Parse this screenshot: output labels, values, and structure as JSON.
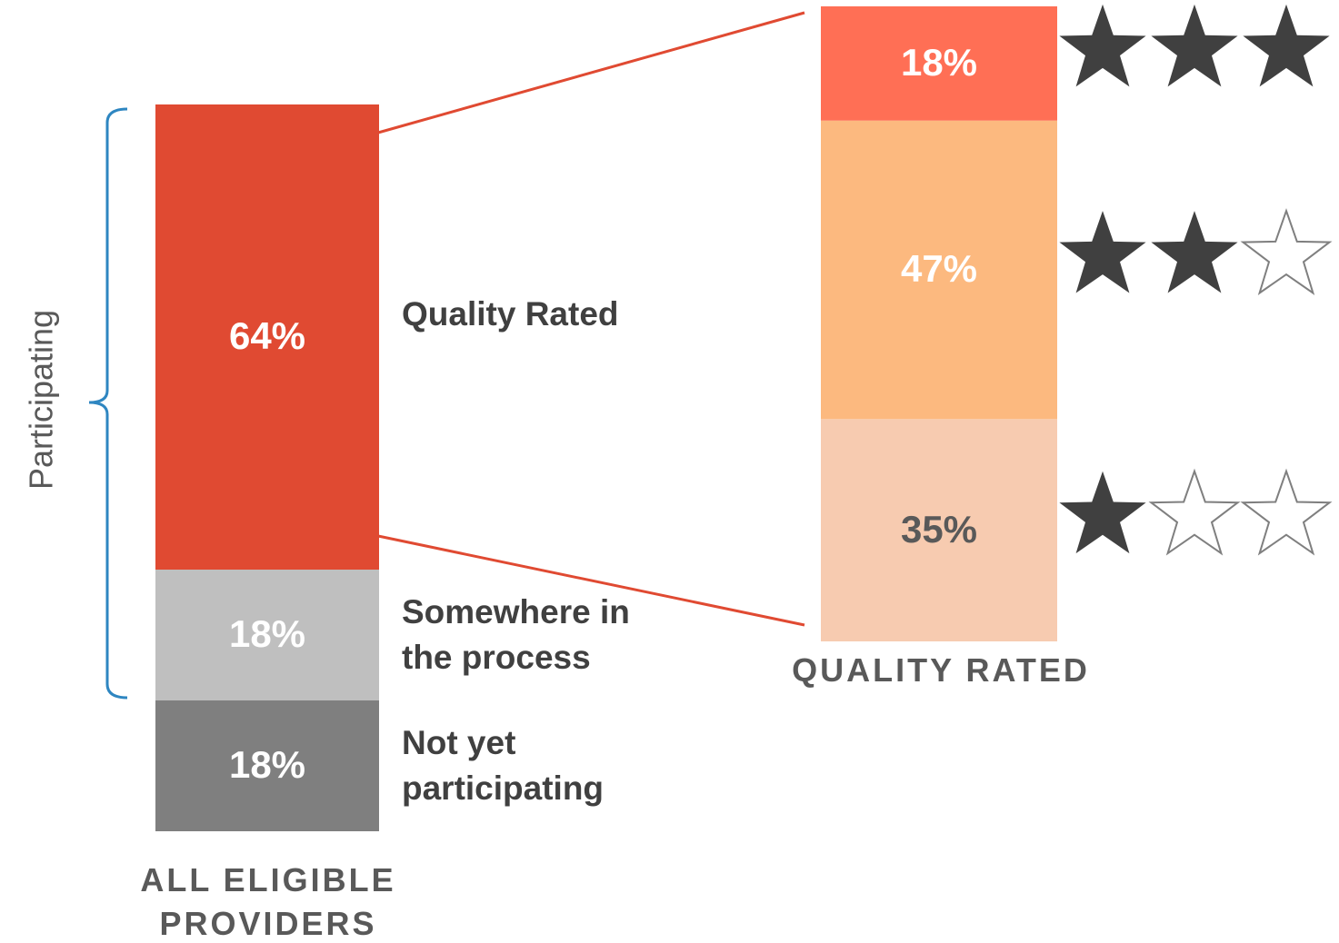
{
  "chart_data": [
    {
      "type": "stacked_bar",
      "xlabel": "ALL ELIGIBLE PROVIDERS",
      "annotation": "Participating",
      "series": [
        {
          "name": "Quality Rated",
          "color": "#e04a32",
          "label_color": "#ffffff",
          "values": [
            64
          ],
          "value_labels": [
            "64%"
          ]
        },
        {
          "name": "Somewhere in the process",
          "color": "#bfbfbf",
          "label_color": "#ffffff",
          "values": [
            18
          ],
          "value_labels": [
            "18%"
          ]
        },
        {
          "name": "Not yet participating",
          "color": "#7f7f7f",
          "label_color": "#ffffff",
          "values": [
            18
          ],
          "value_labels": [
            "18%"
          ]
        }
      ]
    },
    {
      "type": "stacked_bar",
      "xlabel": "QUALITY RATED",
      "rating_max": 3,
      "series": [
        {
          "color": "#ff6f55",
          "label_color": "#ffffff",
          "values": [
            18
          ],
          "value_labels": [
            "18%"
          ],
          "stars": 3
        },
        {
          "color": "#fcb97f",
          "label_color": "#ffffff",
          "values": [
            47
          ],
          "value_labels": [
            "47%"
          ],
          "stars": 2
        },
        {
          "color": "#f7cbb0",
          "label_color": "#595959",
          "values": [
            35
          ],
          "value_labels": [
            "35%"
          ],
          "stars": 1
        }
      ]
    }
  ]
}
